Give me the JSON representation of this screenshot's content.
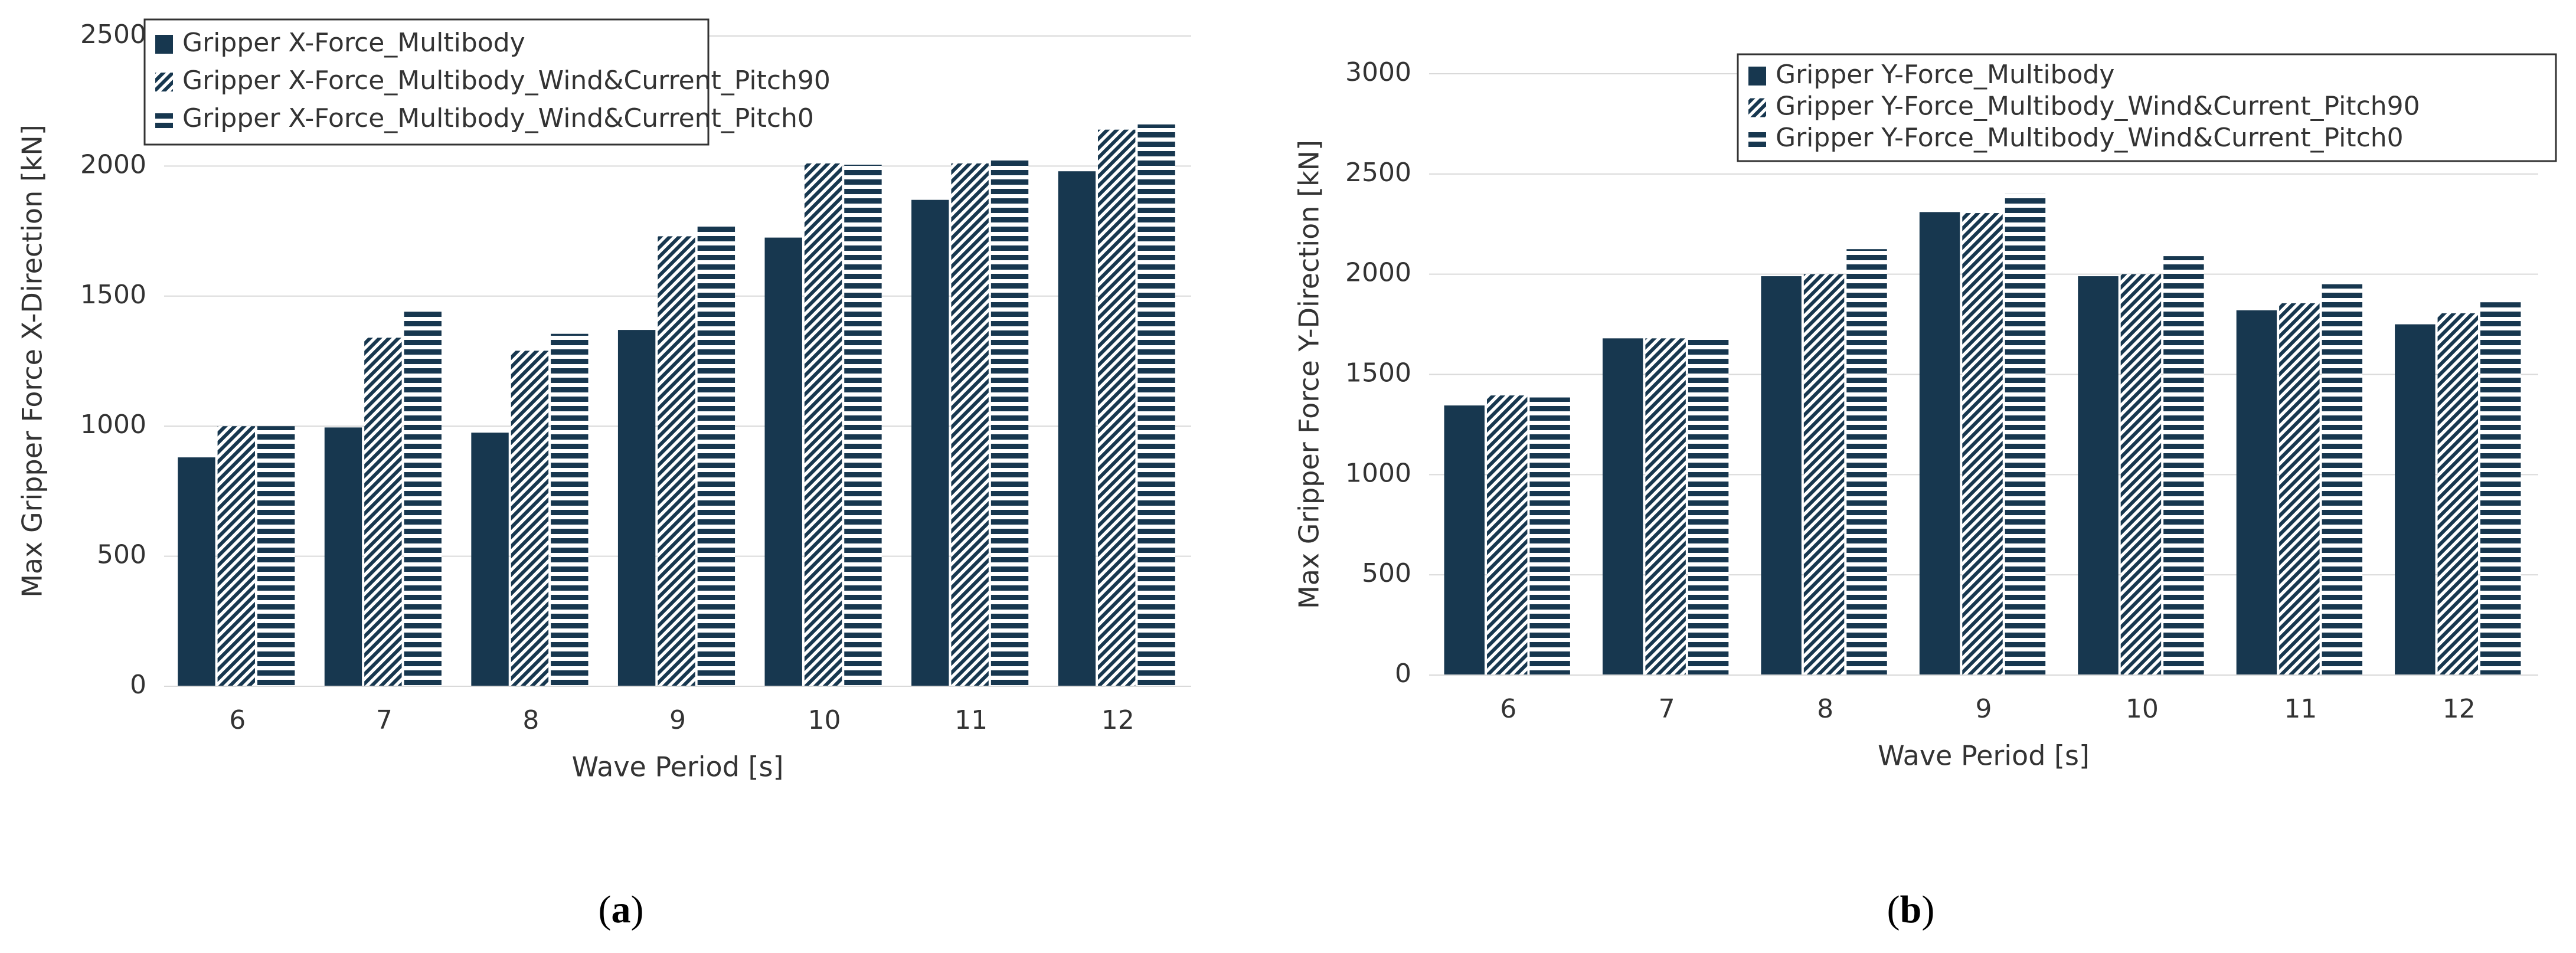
{
  "chart_data": [
    {
      "type": "bar",
      "caption": "(a)",
      "x_label": "Wave Period [s]",
      "y_label": "Max Gripper Force X-Direction [kN]",
      "categories": [
        "6",
        "7",
        "8",
        "9",
        "10",
        "11",
        "12"
      ],
      "series": [
        {
          "name": "Gripper X-Force_Multibody",
          "color": "#17374f",
          "hatch": "solid",
          "values": [
            880,
            995,
            975,
            1370,
            1725,
            1870,
            1980
          ]
        },
        {
          "name": "Gripper X-Force_Multibody_Wind&Current_Pitch90",
          "color": "#17374f",
          "hatch": "diagonal",
          "values": [
            1000,
            1340,
            1290,
            1730,
            2010,
            2010,
            2140
          ]
        },
        {
          "name": "Gripper X-Force_Multibody_Wind&Current_Pitch0",
          "color": "#17374f",
          "hatch": "horizontal",
          "values": [
            1000,
            1440,
            1355,
            1775,
            2005,
            2030,
            2160
          ]
        }
      ],
      "ylim": [
        0,
        2500
      ],
      "yticks": [
        0,
        500,
        1000,
        1500,
        2000,
        2500
      ],
      "grid": true,
      "legend": "top-left"
    },
    {
      "type": "bar",
      "caption": "(b)",
      "x_label": "Wave Period [s]",
      "y_label": "Max Gripper Force Y-Direction [kN]",
      "categories": [
        "6",
        "7",
        "8",
        "9",
        "10",
        "11",
        "12"
      ],
      "series": [
        {
          "name": "Gripper Y-Force_Multibody",
          "color": "#17374f",
          "hatch": "solid",
          "values": [
            1345,
            1680,
            1990,
            2310,
            1990,
            1820,
            1750
          ]
        },
        {
          "name": "Gripper Y-Force_Multibody_Wind&Current_Pitch90",
          "color": "#17374f",
          "hatch": "diagonal",
          "values": [
            1395,
            1680,
            2000,
            2305,
            2000,
            1855,
            1805
          ]
        },
        {
          "name": "Gripper Y-Force_Multibody_Wind&Current_Pitch0",
          "color": "#17374f",
          "hatch": "horizontal",
          "values": [
            1385,
            1690,
            2125,
            2400,
            2090,
            1950,
            1860
          ]
        }
      ],
      "ylim": [
        0,
        3000
      ],
      "yticks": [
        0,
        500,
        1000,
        1500,
        2000,
        2500,
        3000
      ],
      "grid": true,
      "legend": "top-right"
    }
  ]
}
